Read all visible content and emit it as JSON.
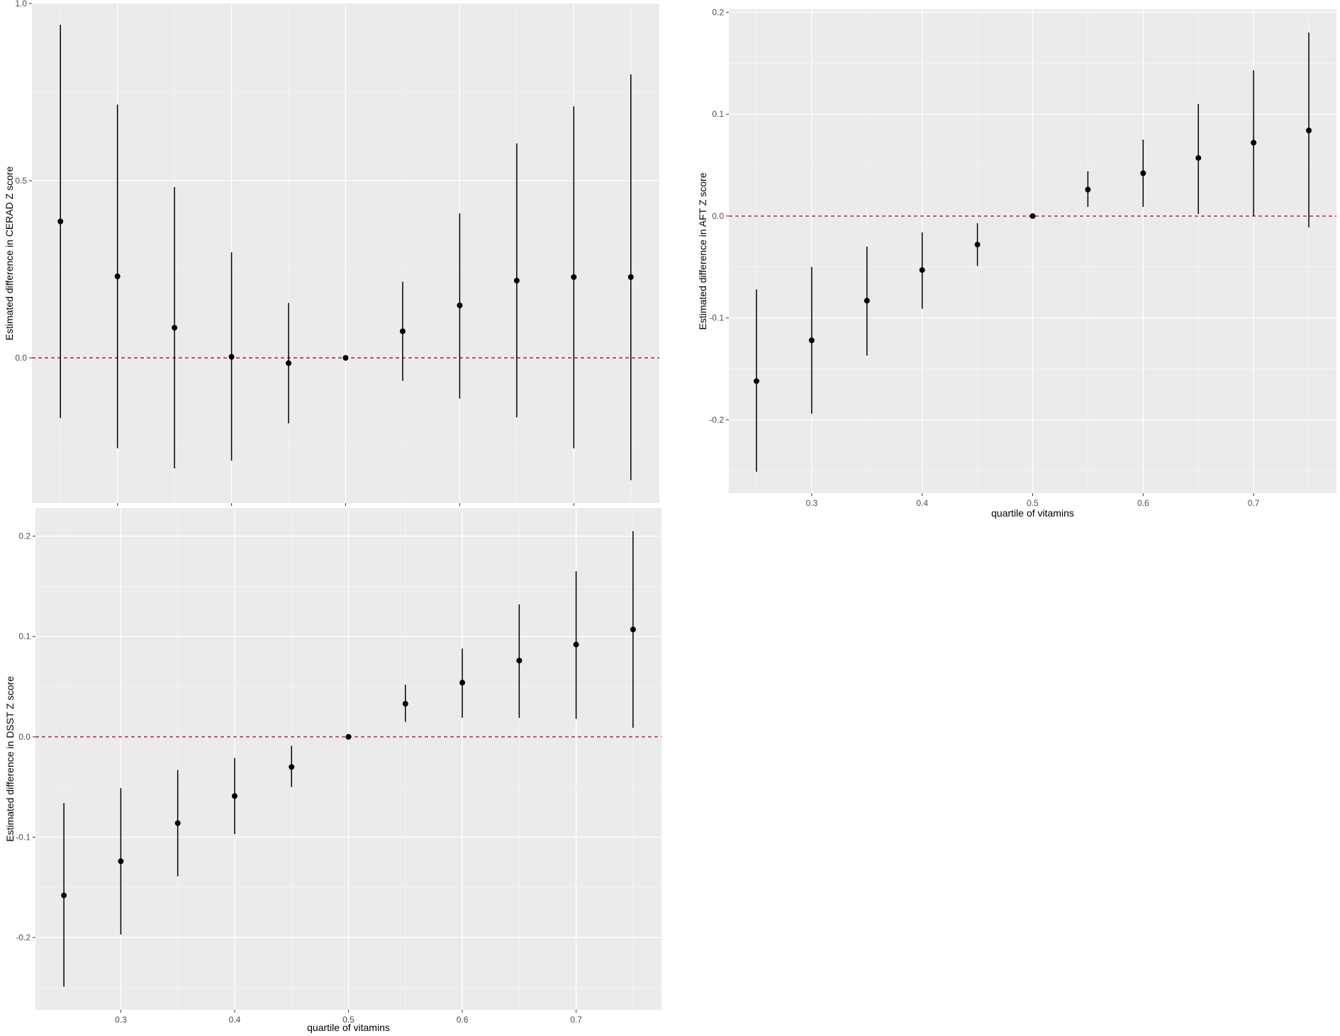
{
  "colors": {
    "panel_bg": "#ebebeb",
    "grid_major": "#ffffff",
    "grid_minor": "#f5f5f5",
    "point": "#000000",
    "reference_line": "#b2182b"
  },
  "chart_data": [
    {
      "type": "scatter",
      "style": "point estimates with vertical error bars, dashed reference line at y = 0",
      "ylabel": "Estimated difference in CERAD Z score",
      "xlabel": "",
      "xlim": [
        0.225,
        0.775
      ],
      "ylim": [
        -0.41,
        1.0
      ],
      "x_ticks": [
        0.3,
        0.4,
        0.5,
        0.6,
        0.7
      ],
      "x_tick_labels_shown": false,
      "y_ticks": [
        0.0,
        0.5,
        1.0
      ],
      "y_tick_labels": [
        "0.0",
        "0.5",
        "1.0"
      ],
      "reference_line_y": 0,
      "grid": true,
      "x": [
        0.25,
        0.3,
        0.35,
        0.4,
        0.45,
        0.5,
        0.55,
        0.6,
        0.65,
        0.7,
        0.75
      ],
      "estimate": [
        0.385,
        0.23,
        0.085,
        0.003,
        -0.015,
        0.0,
        0.075,
        0.148,
        0.218,
        0.228,
        0.228
      ],
      "lower": [
        -0.17,
        -0.255,
        -0.312,
        -0.29,
        -0.185,
        0.0,
        -0.065,
        -0.115,
        -0.168,
        -0.255,
        -0.345
      ],
      "upper": [
        0.94,
        0.715,
        0.482,
        0.298,
        0.155,
        0.0,
        0.215,
        0.408,
        0.605,
        0.71,
        0.8
      ]
    },
    {
      "type": "scatter",
      "style": "point estimates with vertical error bars, dashed reference line at y = 0",
      "ylabel": "Estimated difference in AFT Z score",
      "xlabel": "quartile of vitamins",
      "xlim": [
        0.225,
        0.775
      ],
      "ylim": [
        -0.272,
        0.203
      ],
      "x_ticks": [
        0.3,
        0.4,
        0.5,
        0.6,
        0.7
      ],
      "x_tick_labels": [
        "0.3",
        "0.4",
        "0.5",
        "0.6",
        "0.7"
      ],
      "y_ticks": [
        -0.2,
        -0.1,
        0.0,
        0.1,
        0.2
      ],
      "y_tick_labels": [
        "-0.2",
        "-0.1",
        "0.0",
        "0.1",
        "0.2"
      ],
      "reference_line_y": 0,
      "grid": true,
      "x": [
        0.25,
        0.3,
        0.35,
        0.4,
        0.45,
        0.5,
        0.55,
        0.6,
        0.65,
        0.7,
        0.75
      ],
      "estimate": [
        -0.162,
        -0.122,
        -0.083,
        -0.053,
        -0.028,
        0.0,
        0.026,
        0.042,
        0.057,
        0.072,
        0.084
      ],
      "lower": [
        -0.251,
        -0.194,
        -0.137,
        -0.091,
        -0.049,
        0.0,
        0.009,
        0.009,
        0.002,
        0.0,
        -0.011
      ],
      "upper": [
        -0.072,
        -0.05,
        -0.03,
        -0.016,
        -0.007,
        0.0,
        0.044,
        0.075,
        0.11,
        0.143,
        0.18
      ]
    },
    {
      "type": "scatter",
      "style": "point estimates with vertical error bars, dashed reference line at y = 0",
      "ylabel": "Estimated difference in DSST Z score",
      "xlabel": "quartile of vitamins",
      "xlim": [
        0.225,
        0.775
      ],
      "ylim": [
        -0.272,
        0.228
      ],
      "x_ticks": [
        0.3,
        0.4,
        0.5,
        0.6,
        0.7
      ],
      "x_tick_labels": [
        "0.3",
        "0.4",
        "0.5",
        "0.6",
        "0.7"
      ],
      "y_ticks": [
        -0.2,
        -0.1,
        0.0,
        0.1,
        0.2
      ],
      "y_tick_labels": [
        "-0.2",
        "-0.1",
        "0.0",
        "0.1",
        "0.2"
      ],
      "reference_line_y": 0,
      "grid": true,
      "x": [
        0.25,
        0.3,
        0.35,
        0.4,
        0.45,
        0.5,
        0.55,
        0.6,
        0.65,
        0.7,
        0.75
      ],
      "estimate": [
        -0.158,
        -0.124,
        -0.086,
        -0.059,
        -0.03,
        0.0,
        0.033,
        0.054,
        0.076,
        0.092,
        0.107
      ],
      "lower": [
        -0.249,
        -0.197,
        -0.139,
        -0.097,
        -0.05,
        0.0,
        0.015,
        0.019,
        0.019,
        0.018,
        0.009
      ],
      "upper": [
        -0.066,
        -0.051,
        -0.033,
        -0.021,
        -0.009,
        0.0,
        0.052,
        0.088,
        0.132,
        0.165,
        0.205
      ]
    }
  ]
}
